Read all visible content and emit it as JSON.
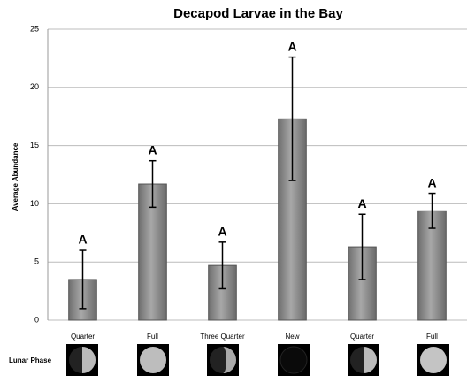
{
  "chart_data": {
    "type": "bar",
    "title": "Decapod Larvae in the Bay",
    "y_label": "Average Abundance",
    "x_label": "Lunar Phase",
    "categories": [
      "Quarter",
      "Full",
      "Three Quarter",
      "New",
      "Quarter",
      "Full"
    ],
    "values": [
      3.5,
      11.7,
      4.7,
      17.3,
      6.3,
      9.4
    ],
    "errors": [
      2.5,
      2.0,
      2.0,
      5.3,
      2.8,
      1.5
    ],
    "annotations": [
      "A",
      "A",
      "A",
      "A",
      "A",
      "A"
    ],
    "color": "#8c8c8c",
    "ylim": [
      0,
      25
    ],
    "yticks": [
      0,
      5,
      10,
      15,
      20,
      25
    ],
    "grid": true
  }
}
